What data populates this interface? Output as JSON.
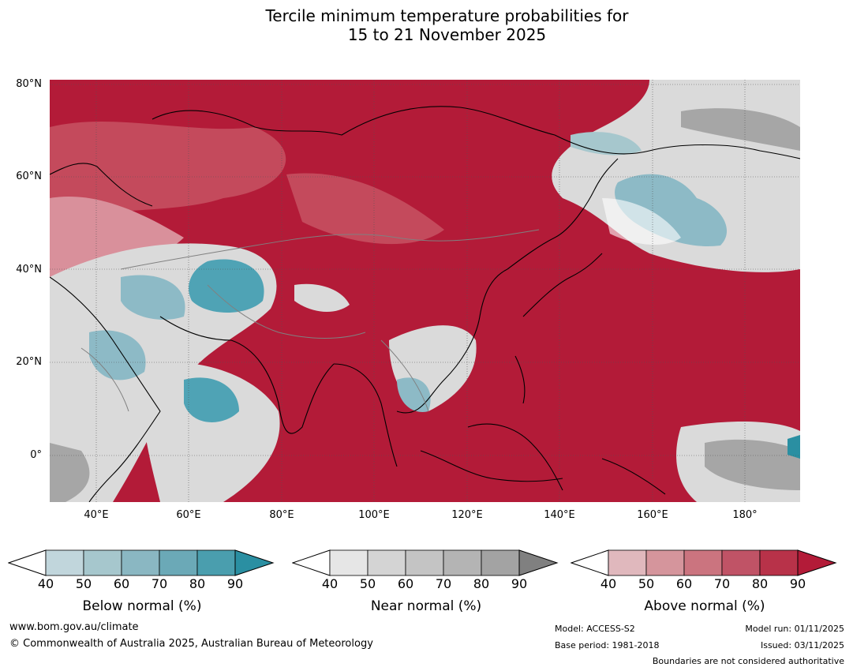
{
  "title": {
    "line1": "Tercile minimum temperature probabilities for",
    "line2": "15 to 21 November 2025"
  },
  "map": {
    "lat_labels": [
      "80°N",
      "60°N",
      "40°N",
      "20°N",
      "0°"
    ],
    "lon_labels": [
      "40°E",
      "60°E",
      "80°E",
      "100°E",
      "120°E",
      "140°E",
      "160°E",
      "180°"
    ],
    "colors": {
      "above": "#b31b38",
      "above_mid": "#c44a5c",
      "above_light": "#d9909b",
      "near": "#dadada",
      "near_dark": "#a6a6a6",
      "below": "#8dbac6",
      "below_dark": "#4fa3b5",
      "coast": "#000000",
      "border": "#808080"
    }
  },
  "legends": [
    {
      "title": "Below normal (%)",
      "ticks": [
        "40",
        "50",
        "60",
        "70",
        "80",
        "90"
      ],
      "colors": [
        "#ffffff",
        "#c1d6dc",
        "#a6c7cd",
        "#8ab7c2",
        "#6ba9b7",
        "#4a9eae",
        "#2a8fa2"
      ]
    },
    {
      "title": "Near normal (%)",
      "ticks": [
        "40",
        "50",
        "60",
        "70",
        "80",
        "90"
      ],
      "colors": [
        "#ffffff",
        "#e6e6e6",
        "#d4d4d4",
        "#c4c4c4",
        "#b4b4b4",
        "#a3a3a3",
        "#808080"
      ]
    },
    {
      "title": "Above normal (%)",
      "ticks": [
        "40",
        "50",
        "60",
        "70",
        "80",
        "90"
      ],
      "colors": [
        "#ffffff",
        "#e0b8bd",
        "#d5959c",
        "#cb747f",
        "#c05366",
        "#b83249",
        "#b31b38"
      ]
    }
  ],
  "footer": {
    "website": "www.bom.gov.au/climate",
    "copyright": "© Commonwealth of Australia 2025, Australian Bureau of Meteorology",
    "model": "Model: ACCESS-S2",
    "base_period": "Base period: 1981-2018",
    "model_run": "Model run: 01/11/2025",
    "issued": "Issued: 03/11/2025",
    "disclaimer": "Boundaries are not considered authoritative"
  }
}
